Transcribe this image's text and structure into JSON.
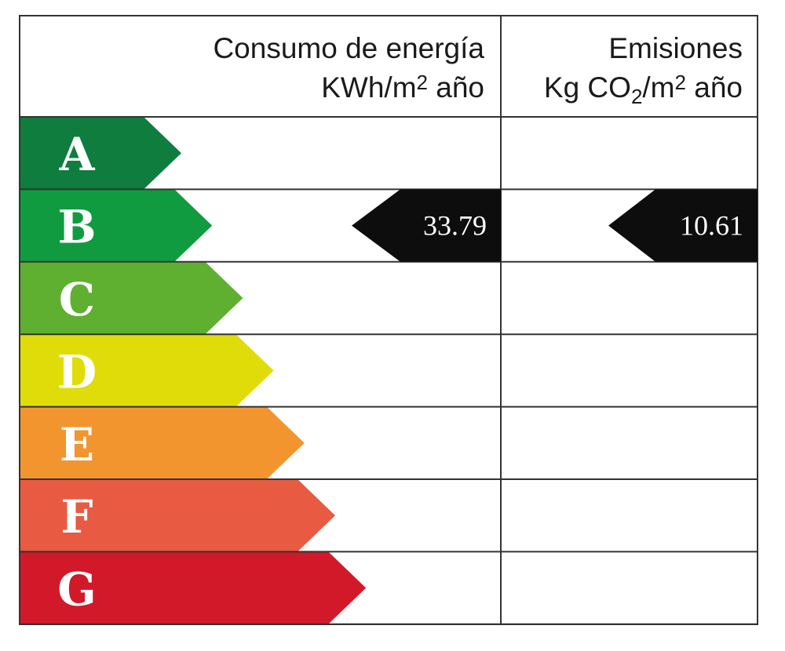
{
  "header": {
    "energy_line1": "Consumo de energía",
    "energy_line2_a": "KWh/m",
    "energy_line2_sup": "2",
    "energy_line2_b": " año",
    "emissions_line1": "Emisiones",
    "emissions_line2_a": "Kg CO",
    "emissions_line2_sub": "2",
    "emissions_line2_b": "/m",
    "emissions_line2_sup": "2",
    "emissions_line2_c": " año"
  },
  "classes": [
    {
      "letter": "A",
      "color": "#0e7d3d"
    },
    {
      "letter": "B",
      "color": "#109b41"
    },
    {
      "letter": "C",
      "color": "#5fb030"
    },
    {
      "letter": "D",
      "color": "#e0dc0a"
    },
    {
      "letter": "E",
      "color": "#f2952f"
    },
    {
      "letter": "F",
      "color": "#e85a41"
    },
    {
      "letter": "G",
      "color": "#d2192a"
    }
  ],
  "rating": {
    "energy_class": "B",
    "energy_value": "33.79",
    "emissions_class": "B",
    "emissions_value": "10.61",
    "indicator_color": "#0d0d0d"
  }
}
